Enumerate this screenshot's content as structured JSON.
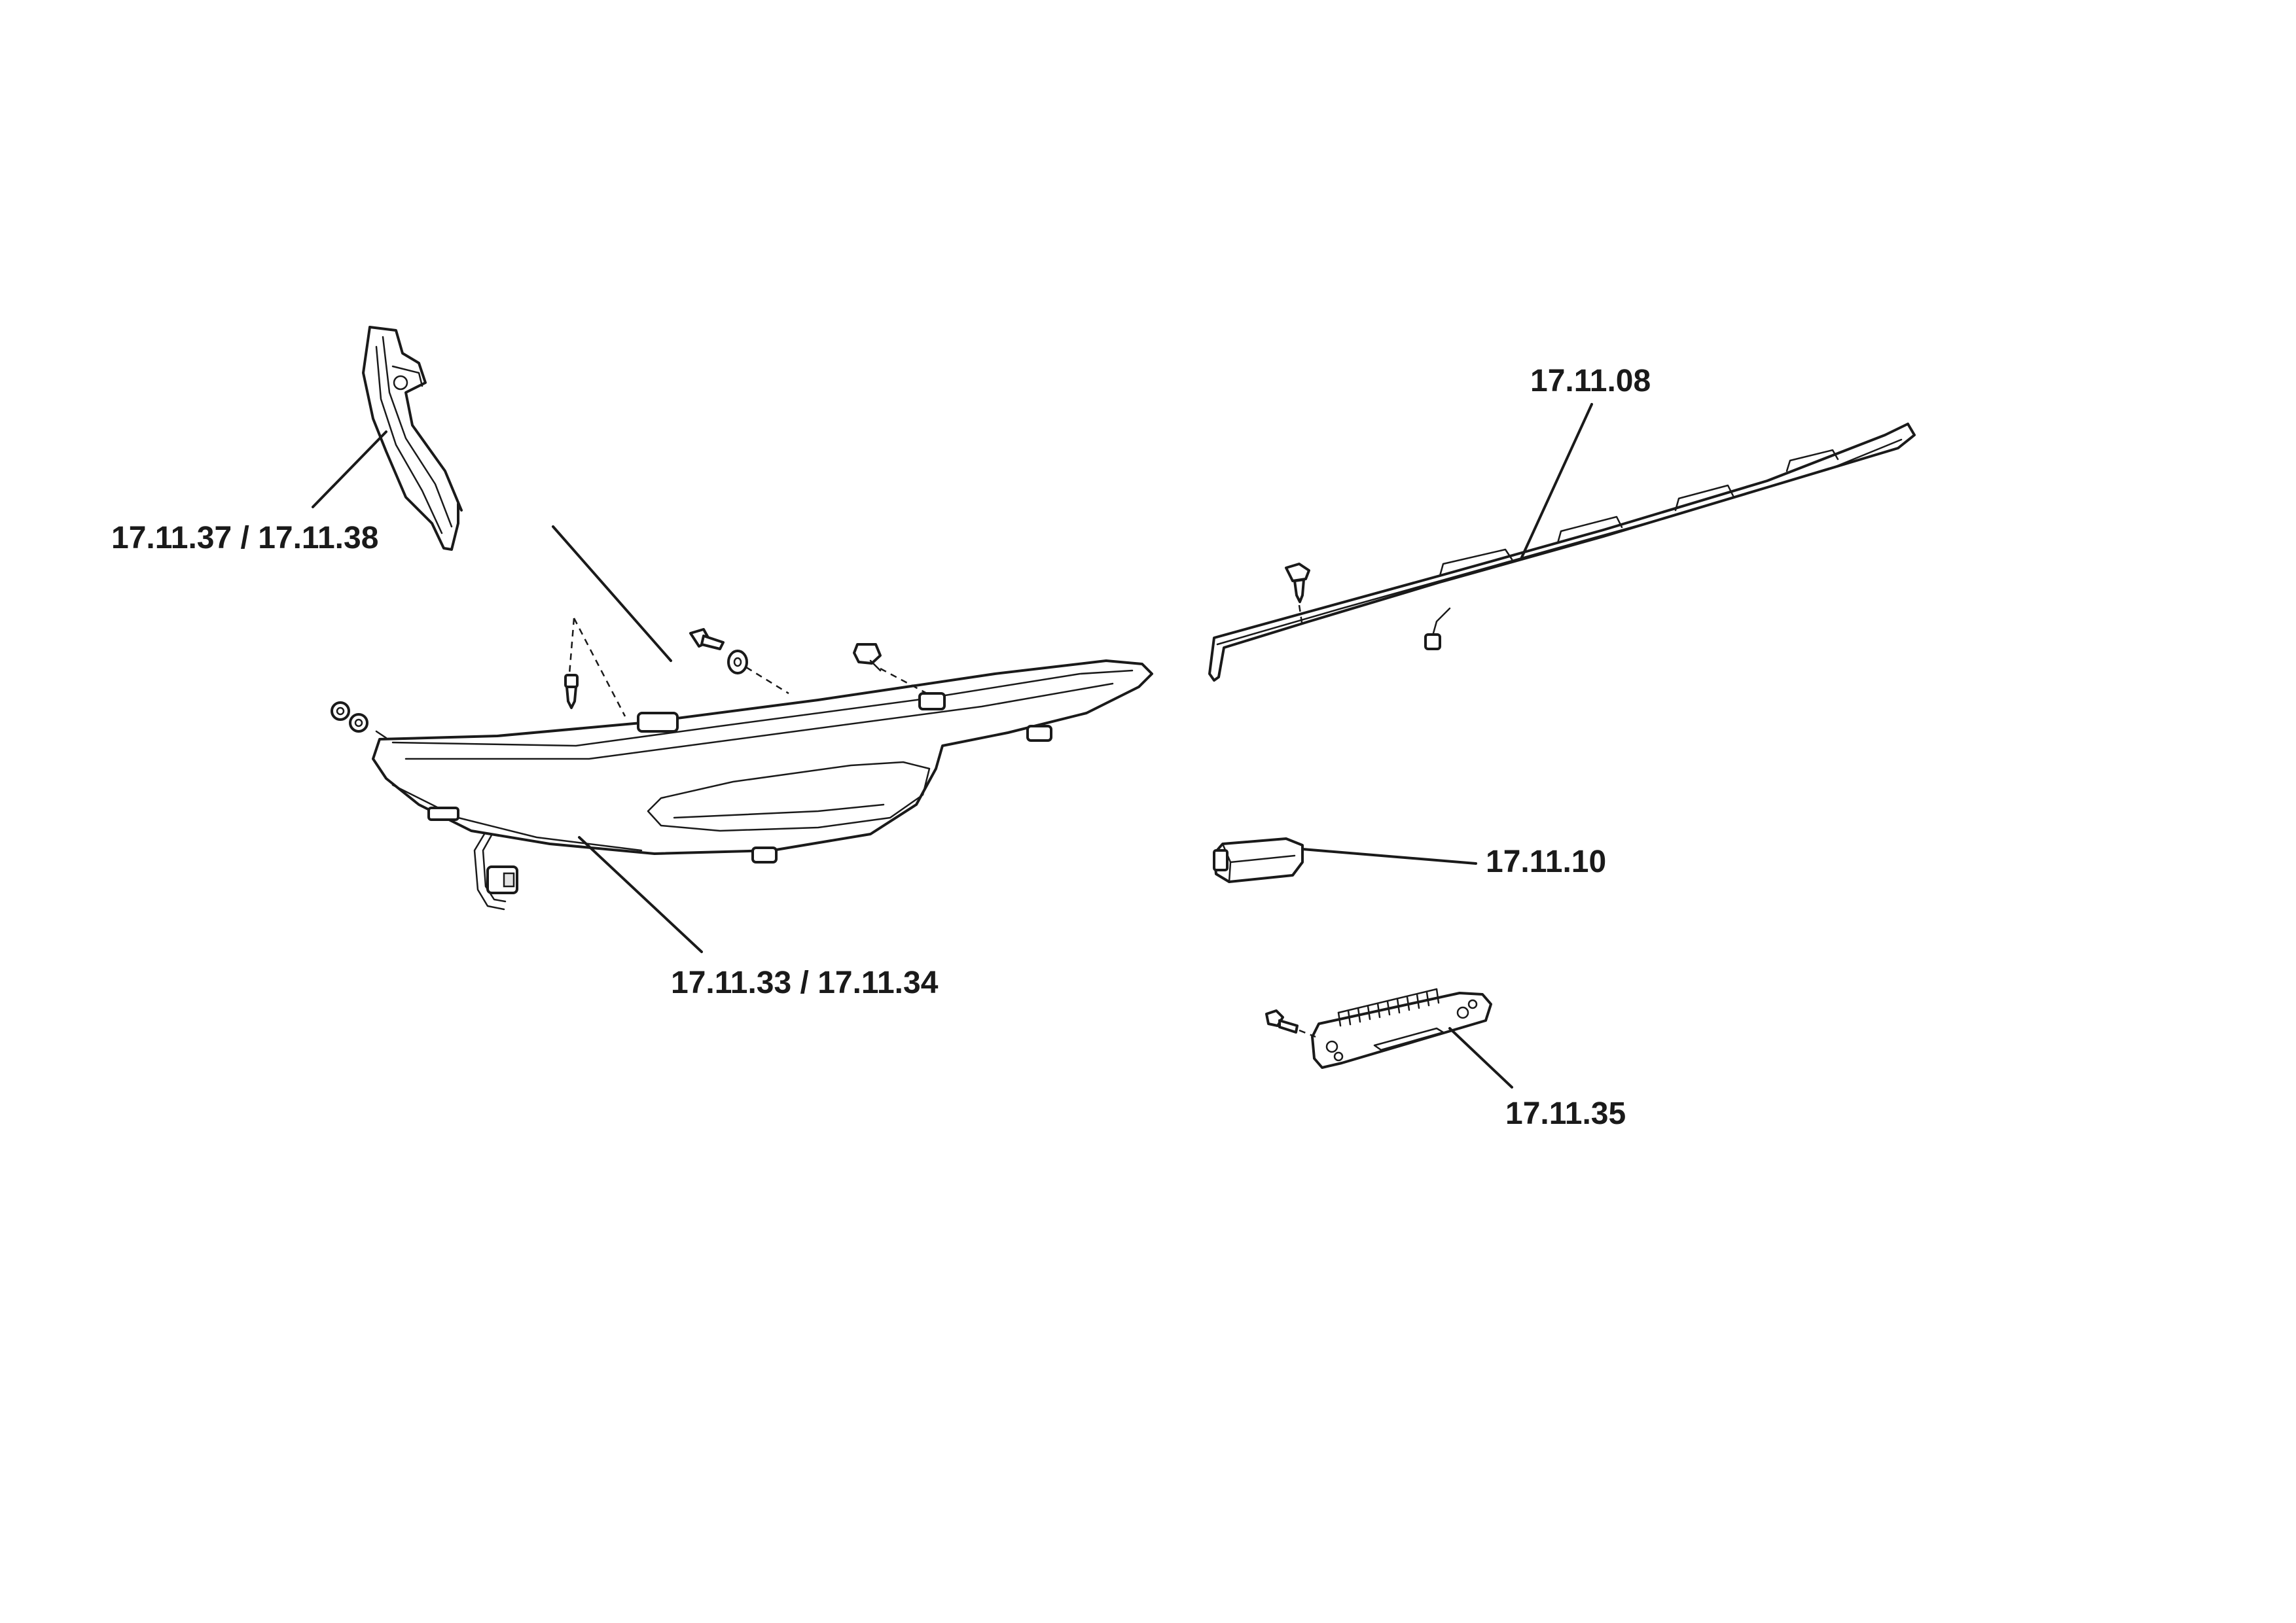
{
  "diagram": {
    "callouts": [
      {
        "id": "trim-left",
        "text": "17.11.37 / 17.11.38"
      },
      {
        "id": "headlamp",
        "text": "17.11.33 / 17.11.34"
      },
      {
        "id": "strip",
        "text": "17.11.08"
      },
      {
        "id": "plate-lamp",
        "text": "17.11.10"
      },
      {
        "id": "third-brake",
        "text": "17.11.35"
      }
    ]
  }
}
